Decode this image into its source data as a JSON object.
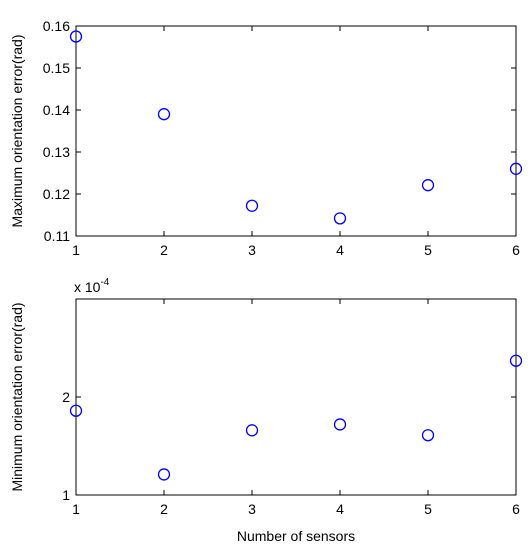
{
  "colors": {
    "marker": "#0000ff",
    "axes": "#000000",
    "background": "#ffffff"
  },
  "chart_data": [
    {
      "type": "scatter",
      "title": "",
      "xlabel": "",
      "ylabel": "Maximum orientation error(rad)",
      "xlim": [
        1,
        6
      ],
      "ylim": [
        0.11,
        0.16
      ],
      "xticks": [
        1,
        2,
        3,
        4,
        5,
        6
      ],
      "xtick_labels": [
        "1",
        "2",
        "3",
        "4",
        "5",
        "6"
      ],
      "yticks": [
        0.11,
        0.12,
        0.13,
        0.14,
        0.15,
        0.16
      ],
      "ytick_labels": [
        "0.11",
        "0.12",
        "0.13",
        "0.14",
        "0.15",
        "0.16"
      ],
      "grid": false,
      "marker": "circle-open",
      "x": [
        1,
        2,
        3,
        4,
        5,
        6
      ],
      "y": [
        0.1575,
        0.139,
        0.1172,
        0.1142,
        0.1221,
        0.126
      ]
    },
    {
      "type": "scatter",
      "title": "",
      "xlabel": "Number of sensors",
      "ylabel": "Minimum orientation error(rad)",
      "xlim": [
        1,
        6
      ],
      "ylim": [
        1,
        3
      ],
      "xticks": [
        1,
        2,
        3,
        4,
        5,
        6
      ],
      "xtick_labels": [
        "1",
        "2",
        "3",
        "4",
        "5",
        "6"
      ],
      "yticks": [
        1,
        2
      ],
      "ytick_labels": [
        "1",
        "2"
      ],
      "y_exponent_prefix": "x 10",
      "y_exponent_power": "-4",
      "grid": false,
      "marker": "circle-open",
      "x": [
        1,
        2,
        3,
        4,
        5,
        6
      ],
      "y": [
        1.86,
        1.21,
        1.66,
        1.72,
        1.61,
        2.37
      ]
    }
  ]
}
